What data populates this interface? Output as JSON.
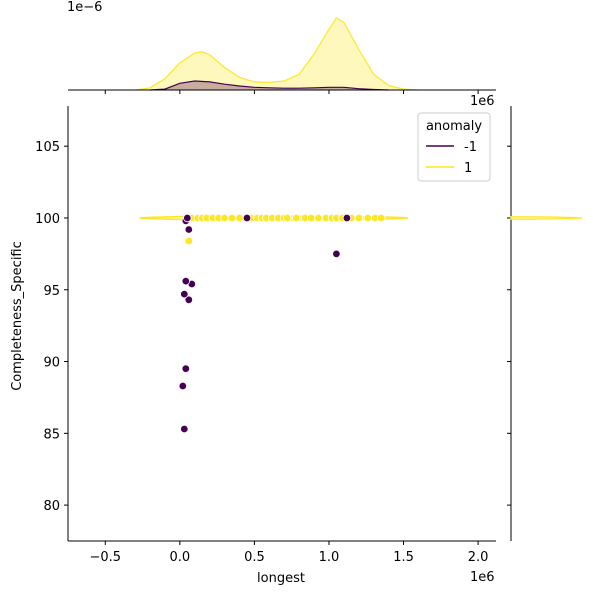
{
  "chart_data": {
    "type": "scatter",
    "subtype": "jointplot",
    "xlabel": "longest",
    "ylabel": "Completeness_Specific",
    "x_offset_label": "1e6",
    "marginal_x_offset_label": "1e−6",
    "marginal_y_offset_label": "1e6",
    "xlim": [
      -0.75,
      2.12
    ],
    "ylim": [
      77.5,
      107.8
    ],
    "x_ticks": [
      -0.5,
      0.0,
      0.5,
      1.0,
      1.5,
      2.0
    ],
    "x_tick_labels": [
      "−0.5",
      "0.0",
      "0.5",
      "1.0",
      "1.5",
      "2.0"
    ],
    "y_ticks": [
      80,
      85,
      90,
      95,
      100,
      105
    ],
    "y_tick_labels": [
      "80",
      "85",
      "90",
      "95",
      "100",
      "105"
    ],
    "grid": false,
    "legend": {
      "title": "anomaly",
      "placement": "top-right",
      "entries": [
        {
          "label": "-1",
          "color": "#440154"
        },
        {
          "label": "1",
          "color": "#fde725"
        }
      ]
    },
    "series": [
      {
        "name": "-1",
        "color": "#440154",
        "points": [
          [
            0.03,
            85.3
          ],
          [
            0.02,
            88.3
          ],
          [
            0.04,
            89.5
          ],
          [
            0.06,
            94.3
          ],
          [
            0.03,
            94.7
          ],
          [
            0.08,
            95.4
          ],
          [
            0.04,
            95.6
          ],
          [
            0.06,
            99.2
          ],
          [
            0.04,
            99.8
          ],
          [
            0.05,
            100.0
          ],
          [
            0.45,
            100.0
          ],
          [
            1.05,
            97.5
          ],
          [
            1.12,
            100.0
          ]
        ]
      },
      {
        "name": "1",
        "color": "#fde725",
        "points": [
          [
            0.06,
            98.4
          ],
          [
            0.05,
            100.0
          ],
          [
            0.08,
            100.0
          ],
          [
            0.12,
            100.0
          ],
          [
            0.15,
            100.0
          ],
          [
            0.18,
            100.0
          ],
          [
            0.22,
            100.0
          ],
          [
            0.26,
            100.0
          ],
          [
            0.3,
            100.0
          ],
          [
            0.35,
            100.0
          ],
          [
            0.4,
            100.0
          ],
          [
            0.48,
            100.0
          ],
          [
            0.52,
            100.0
          ],
          [
            0.55,
            100.0
          ],
          [
            0.58,
            100.0
          ],
          [
            0.62,
            100.0
          ],
          [
            0.66,
            100.0
          ],
          [
            0.7,
            100.0
          ],
          [
            0.72,
            100.0
          ],
          [
            0.78,
            100.0
          ],
          [
            0.84,
            100.0
          ],
          [
            0.88,
            100.0
          ],
          [
            0.93,
            100.0
          ],
          [
            0.98,
            100.0
          ],
          [
            1.02,
            100.0
          ],
          [
            1.05,
            100.0
          ],
          [
            1.09,
            100.0
          ],
          [
            1.15,
            100.0
          ],
          [
            1.2,
            100.0
          ],
          [
            1.26,
            100.0
          ],
          [
            1.31,
            100.0
          ],
          [
            1.35,
            100.0
          ]
        ]
      }
    ],
    "spread_band": {
      "series": "1",
      "y": 100.0,
      "x_range": [
        -0.27,
        1.53
      ]
    },
    "marginal_x": {
      "series": [
        {
          "name": "-1",
          "color": "#440154",
          "x": [
            -0.2,
            -0.1,
            0.0,
            0.1,
            0.2,
            0.3,
            0.4,
            0.5,
            0.6,
            0.7,
            0.8,
            0.9,
            1.0,
            1.1,
            1.2,
            1.3,
            1.4
          ],
          "density": [
            0.0,
            0.02,
            0.15,
            0.2,
            0.18,
            0.13,
            0.09,
            0.06,
            0.05,
            0.04,
            0.04,
            0.05,
            0.06,
            0.06,
            0.03,
            0.01,
            0.0
          ]
        },
        {
          "name": "1",
          "color": "#fde725",
          "x": [
            -0.3,
            -0.2,
            -0.1,
            0.0,
            0.1,
            0.15,
            0.2,
            0.3,
            0.4,
            0.5,
            0.6,
            0.7,
            0.8,
            0.9,
            1.0,
            1.05,
            1.1,
            1.2,
            1.3,
            1.4,
            1.5,
            1.6
          ],
          "density": [
            0.0,
            0.05,
            0.25,
            0.6,
            0.82,
            0.85,
            0.78,
            0.5,
            0.28,
            0.18,
            0.17,
            0.2,
            0.35,
            0.8,
            1.35,
            1.6,
            1.5,
            0.9,
            0.35,
            0.1,
            0.02,
            0.0
          ]
        }
      ]
    },
    "marginal_y": {
      "series": [
        {
          "name": "1",
          "color": "#fde725",
          "y_center": 100.0
        }
      ]
    }
  }
}
